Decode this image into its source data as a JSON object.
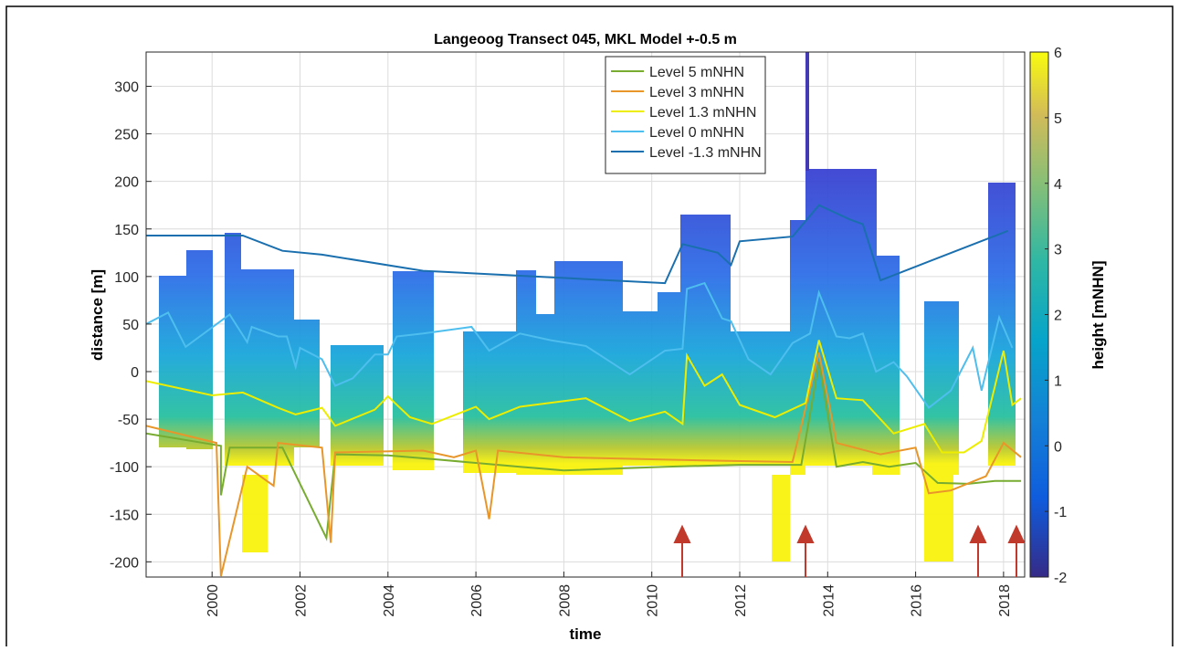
{
  "chart_data": {
    "type": "line",
    "title": "Langeoog Transect 045, MKL Model +-0.5 m",
    "x_label": "time",
    "y_label": "distance [m]",
    "xlim": [
      1998.5,
      2018.48
    ],
    "xticks": [
      2000,
      2002,
      2004,
      2006,
      2008,
      2010,
      2012,
      2014,
      2016,
      2018
    ],
    "ylim": [
      -216,
      336
    ],
    "yticks": [
      -200,
      -150,
      -100,
      -50,
      0,
      50,
      100,
      150,
      200,
      250,
      300
    ],
    "grid": true,
    "legend": "top-center",
    "colorbar": {
      "label": "height [mNHN]",
      "lim": [
        -2,
        6
      ],
      "ticks": [
        -2,
        -1,
        0,
        1,
        2,
        3,
        4,
        5,
        6
      ]
    },
    "series": [
      {
        "name": "Level 5 mNHN",
        "color": "#77ac30",
        "x": [
          1998.5,
          2000.2,
          2000.2,
          2000.4,
          2001.6,
          2002.6,
          2002.8,
          2004,
          2005,
          2007,
          2008,
          2010.3,
          2012,
          2013.4,
          2013.8,
          2014.2,
          2014.8,
          2015.4,
          2016,
          2016.5,
          2017.2,
          2017.8,
          2018.4
        ],
        "values": [
          -65,
          -78,
          -130,
          -80,
          -80,
          -175,
          -87,
          -88,
          -92,
          -100,
          -104,
          -100,
          -98,
          -98,
          10,
          -100,
          -95,
          -100,
          -96,
          -117,
          -118,
          -115,
          -115
        ]
      },
      {
        "name": "Level 3 mNHN",
        "color": "#e8962a",
        "x": [
          1998.5,
          2000.1,
          2000.2,
          2000.8,
          2001.4,
          2001.5,
          2002.5,
          2002.7,
          2002.8,
          2004.8,
          2005.5,
          2006,
          2006.3,
          2006.5,
          2008,
          2010.8,
          2013.2,
          2013.8,
          2014.2,
          2015.2,
          2016,
          2016.3,
          2016.8,
          2017.6,
          2018,
          2018.4
        ],
        "values": [
          -57,
          -75,
          -215,
          -100,
          -120,
          -75,
          -80,
          -180,
          -85,
          -83,
          -90,
          -83,
          -155,
          -83,
          -90,
          -93,
          -95,
          20,
          -75,
          -87,
          -80,
          -128,
          -125,
          -110,
          -75,
          -90
        ]
      },
      {
        "name": "Level 1.3 mNHN",
        "color": "#eded00",
        "x": [
          1998.5,
          2000,
          2000.7,
          2001.5,
          2001.9,
          2002.5,
          2002.8,
          2003.7,
          2004,
          2004.5,
          2005,
          2006,
          2006.3,
          2007,
          2008.5,
          2009.5,
          2010.3,
          2010.7,
          2010.8,
          2011.2,
          2011.6,
          2012,
          2012.8,
          2013.5,
          2013.8,
          2014.2,
          2014.8,
          2015.5,
          2016.2,
          2016.6,
          2017.1,
          2017.5,
          2018,
          2018.2,
          2018.4
        ],
        "values": [
          -10,
          -25,
          -22,
          -38,
          -45,
          -38,
          -57,
          -40,
          -26,
          -48,
          -55,
          -37,
          -50,
          -37,
          -28,
          -52,
          -42,
          -55,
          17,
          -15,
          -3,
          -35,
          -48,
          -33,
          33,
          -28,
          -30,
          -65,
          -55,
          -85,
          -85,
          -73,
          22,
          -35,
          -28
        ]
      },
      {
        "name": "Level 0 mNHN",
        "color": "#4dbeee",
        "x": [
          1998.5,
          1999,
          1999.4,
          2000.4,
          2000.8,
          2000.9,
          2001.5,
          2001.7,
          2001.9,
          2002,
          2002.5,
          2002.8,
          2003.2,
          2003.7,
          2004,
          2004.2,
          2004.8,
          2005.9,
          2006.3,
          2007,
          2007.7,
          2008.5,
          2009.5,
          2010.3,
          2010.7,
          2010.8,
          2011.2,
          2011.6,
          2011.8,
          2012.2,
          2012.7,
          2013.2,
          2013.6,
          2013.8,
          2014.2,
          2014.5,
          2014.8,
          2015.1,
          2015.5,
          2015.8,
          2016.3,
          2016.8,
          2017.3,
          2017.5,
          2017.9,
          2018.2
        ],
        "values": [
          50,
          62,
          26,
          60,
          31,
          47,
          37,
          37,
          5,
          25,
          13,
          -15,
          -7,
          18,
          18,
          37,
          40,
          47,
          22,
          40,
          33,
          27,
          -3,
          22,
          24,
          87,
          93,
          56,
          53,
          13,
          -3,
          30,
          40,
          83,
          37,
          35,
          40,
          0,
          10,
          -5,
          -38,
          -20,
          25,
          -20,
          57,
          25
        ]
      },
      {
        "name": "Level -1.3 mNHN",
        "color": "#1a6fae",
        "x": [
          1998.5,
          2000.7,
          2001.6,
          2002.5,
          2004.8,
          2010.3,
          2010.7,
          2011.5,
          2011.8,
          2012,
          2013.2,
          2013.8,
          2014.5,
          2014.8,
          2015.2,
          2018.1
        ],
        "values": [
          143,
          143,
          127,
          123,
          106,
          93,
          134,
          125,
          112,
          137,
          142,
          175,
          160,
          155,
          96,
          148
        ]
      }
    ]
  }
}
